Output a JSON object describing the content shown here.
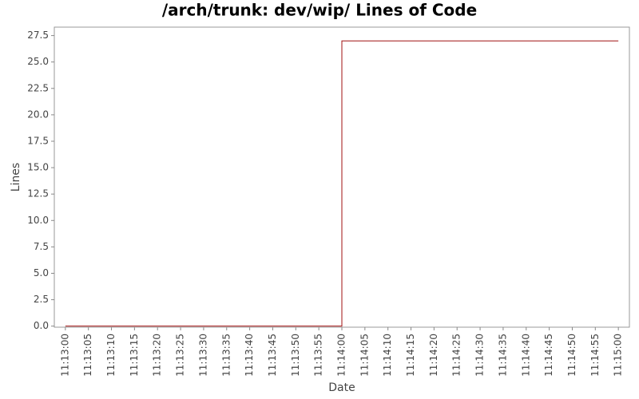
{
  "chart_data": {
    "type": "step",
    "title": "/arch/trunk: dev/wip/ Lines of Code",
    "x_label": "Date",
    "y_label": "Lines",
    "x": [
      "11:13:00",
      "11:14:00",
      "11:15:00"
    ],
    "values": [
      0,
      27,
      27
    ],
    "color": "#a01010",
    "xlim": [
      "11:12:57.6",
      "11:15:02.4"
    ],
    "xticks": [
      "11:13:00",
      "11:13:05",
      "11:13:10",
      "11:13:15",
      "11:13:20",
      "11:13:25",
      "11:13:30",
      "11:13:35",
      "11:13:40",
      "11:13:45",
      "11:13:50",
      "11:13:55",
      "11:14:00",
      "11:14:05",
      "11:14:10",
      "11:14:15",
      "11:14:20",
      "11:14:25",
      "11:14:30",
      "11:14:35",
      "11:14:40",
      "11:14:45",
      "11:14:50",
      "11:14:55",
      "11:15:00"
    ],
    "ylim": [
      -0.1,
      28.3
    ],
    "yticks": [
      {
        "value": 0,
        "label": "0.0"
      },
      2.5,
      {
        "value": 5,
        "label": "5.0"
      },
      7.5,
      {
        "value": 10,
        "label": "10.0"
      },
      12.5,
      {
        "value": 15,
        "label": "15.0"
      },
      17.5,
      {
        "value": 20,
        "label": "20.0"
      },
      22.5,
      {
        "value": 25,
        "label": "25.0"
      },
      27.5
    ],
    "grid": false
  }
}
